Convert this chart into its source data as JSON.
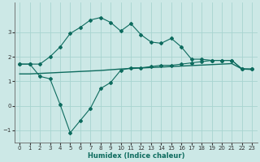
{
  "xlabel": "Humidex (Indice chaleur)",
  "xlim": [
    -0.5,
    23.5
  ],
  "ylim": [
    -1.5,
    4.2
  ],
  "yticks": [
    -1,
    0,
    1,
    2,
    3
  ],
  "xticks": [
    0,
    1,
    2,
    3,
    4,
    5,
    6,
    7,
    8,
    9,
    10,
    11,
    12,
    13,
    14,
    15,
    16,
    17,
    18,
    19,
    20,
    21,
    22,
    23
  ],
  "bg_color": "#cce8e6",
  "grid_color": "#a8d4d0",
  "line_color": "#0d6b5e",
  "line2_x": [
    0,
    1,
    2,
    3,
    4,
    5,
    6,
    7,
    8,
    9,
    10,
    11,
    12,
    13,
    14,
    15,
    16,
    17,
    18,
    19,
    20,
    21,
    22,
    23
  ],
  "line2_y": [
    1.7,
    1.7,
    1.7,
    2.0,
    2.4,
    2.95,
    3.2,
    3.5,
    3.6,
    3.4,
    3.05,
    3.35,
    2.9,
    2.6,
    2.55,
    2.75,
    2.4,
    1.9,
    1.9,
    1.85,
    1.85,
    1.85,
    1.5,
    1.5
  ],
  "line1_x": [
    0,
    1,
    2,
    3,
    4,
    5,
    6,
    7,
    8,
    9,
    10,
    11,
    12,
    13,
    14,
    15,
    16,
    17,
    18,
    19,
    20,
    21,
    22,
    23
  ],
  "line1_y": [
    1.7,
    1.7,
    1.2,
    1.1,
    0.05,
    -1.1,
    -0.6,
    -0.1,
    0.7,
    0.95,
    1.45,
    1.55,
    1.55,
    1.6,
    1.65,
    1.65,
    1.7,
    1.75,
    1.8,
    1.85,
    1.85,
    1.85,
    1.5,
    1.5
  ],
  "line3_x": [
    0,
    1,
    2,
    3,
    4,
    5,
    6,
    7,
    8,
    9,
    10,
    11,
    12,
    13,
    14,
    15,
    16,
    17,
    18,
    19,
    20,
    21,
    22,
    23
  ],
  "line3_y": [
    1.3,
    1.3,
    1.32,
    1.34,
    1.36,
    1.38,
    1.4,
    1.42,
    1.44,
    1.47,
    1.5,
    1.52,
    1.54,
    1.56,
    1.58,
    1.6,
    1.62,
    1.64,
    1.66,
    1.68,
    1.7,
    1.72,
    1.5,
    1.48
  ]
}
